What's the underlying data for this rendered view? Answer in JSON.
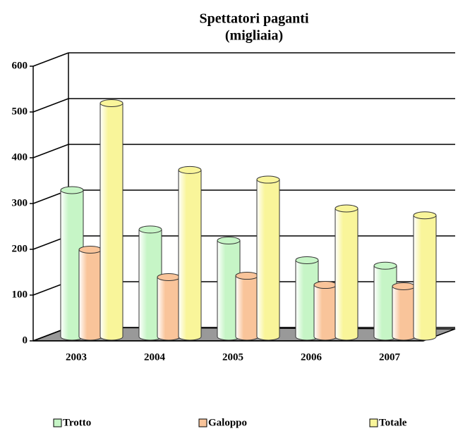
{
  "chart_data": {
    "type": "bar",
    "title": "Spettatori paganti",
    "subtitle": "(migliaia)",
    "categories": [
      "2003",
      "2004",
      "2005",
      "2006",
      "2007"
    ],
    "series": [
      {
        "name": "Trotto",
        "color": "#c6f5c6",
        "values": [
          320,
          234,
          210,
          167,
          155
        ]
      },
      {
        "name": "Galoppo",
        "color": "#f9c49a",
        "values": [
          190,
          130,
          133,
          113,
          110
        ]
      },
      {
        "name": "Totale",
        "color": "#f9f59a",
        "values": [
          510,
          364,
          343,
          280,
          265
        ]
      }
    ],
    "ylim": [
      0,
      600
    ],
    "yticks": [
      0,
      100,
      200,
      300,
      400,
      500,
      600
    ],
    "grid": true,
    "legend": "bottom"
  }
}
